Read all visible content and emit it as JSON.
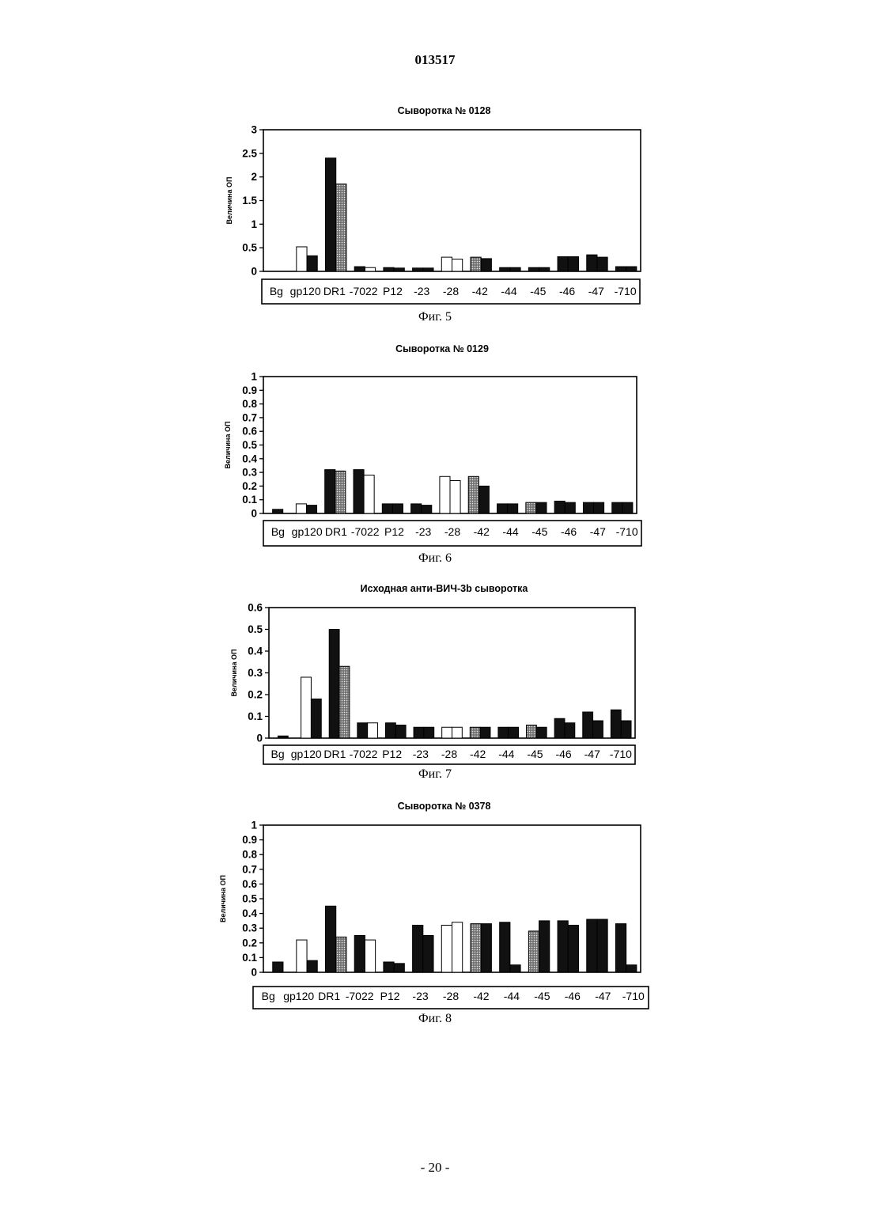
{
  "document": {
    "page_number": "013517",
    "footer": "- 20 -"
  },
  "chart_data": [
    {
      "type": "bar",
      "title": "Сыворотка № 0128",
      "ylabel": "Величина ОП",
      "caption": "Фиг. 5",
      "ylim": [
        0,
        3
      ],
      "yticks": [
        "0",
        "0.5",
        "1",
        "1.5",
        "2",
        "2.5",
        "3"
      ],
      "categories": [
        "Bg",
        "gp120",
        "DR1",
        "-7022",
        "P12",
        "-23",
        "-28",
        "-42",
        "-44",
        "-45",
        "-46",
        "-47",
        "-710"
      ],
      "groups": [
        {
          "category": "Bg",
          "bars": []
        },
        {
          "category": "gp120",
          "bars": [
            {
              "value": 0.52,
              "fill": "white"
            },
            {
              "value": 0.33,
              "fill": "black"
            }
          ]
        },
        {
          "category": "DR1",
          "bars": [
            {
              "value": 2.4,
              "fill": "black"
            },
            {
              "value": 1.85,
              "fill": "gray"
            }
          ]
        },
        {
          "category": "-7022",
          "bars": [
            {
              "value": 0.1,
              "fill": "black"
            },
            {
              "value": 0.08,
              "fill": "white"
            }
          ]
        },
        {
          "category": "P12",
          "bars": [
            {
              "value": 0.08,
              "fill": "black"
            },
            {
              "value": 0.07,
              "fill": "black"
            }
          ]
        },
        {
          "category": "-23",
          "bars": [
            {
              "value": 0.07,
              "fill": "black"
            },
            {
              "value": 0.07,
              "fill": "black"
            }
          ]
        },
        {
          "category": "-28",
          "bars": [
            {
              "value": 0.3,
              "fill": "white"
            },
            {
              "value": 0.26,
              "fill": "white"
            }
          ]
        },
        {
          "category": "-42",
          "bars": [
            {
              "value": 0.3,
              "fill": "gray"
            },
            {
              "value": 0.27,
              "fill": "black"
            }
          ]
        },
        {
          "category": "-44",
          "bars": [
            {
              "value": 0.08,
              "fill": "black"
            },
            {
              "value": 0.08,
              "fill": "black"
            }
          ]
        },
        {
          "category": "-45",
          "bars": [
            {
              "value": 0.08,
              "fill": "black"
            },
            {
              "value": 0.08,
              "fill": "black"
            }
          ]
        },
        {
          "category": "-46",
          "bars": [
            {
              "value": 0.31,
              "fill": "black"
            },
            {
              "value": 0.31,
              "fill": "black"
            }
          ]
        },
        {
          "category": "-47",
          "bars": [
            {
              "value": 0.35,
              "fill": "black"
            },
            {
              "value": 0.3,
              "fill": "black"
            }
          ]
        },
        {
          "category": "-710",
          "bars": [
            {
              "value": 0.1,
              "fill": "black"
            },
            {
              "value": 0.1,
              "fill": "black"
            }
          ]
        }
      ]
    },
    {
      "type": "bar",
      "title": "Сыворотка № 0129",
      "ylabel": "Величина ОП",
      "caption": "Фиг. 6",
      "ylim": [
        0,
        1
      ],
      "yticks": [
        "0",
        "0.1",
        "0.2",
        "0.3",
        "0.4",
        "0.5",
        "0.6",
        "0.7",
        "0.8",
        "0.9",
        "1"
      ],
      "categories": [
        "Bg",
        "gp120",
        "DR1",
        "-7022",
        "P12",
        "-23",
        "-28",
        "-42",
        "-44",
        "-45",
        "-46",
        "-47",
        "-710"
      ],
      "groups": [
        {
          "category": "Bg",
          "bars": [
            {
              "value": 0.03,
              "fill": "black"
            }
          ]
        },
        {
          "category": "gp120",
          "bars": [
            {
              "value": 0.07,
              "fill": "white"
            },
            {
              "value": 0.06,
              "fill": "black"
            }
          ]
        },
        {
          "category": "DR1",
          "bars": [
            {
              "value": 0.32,
              "fill": "black"
            },
            {
              "value": 0.31,
              "fill": "gray"
            }
          ]
        },
        {
          "category": "-7022",
          "bars": [
            {
              "value": 0.32,
              "fill": "black"
            },
            {
              "value": 0.28,
              "fill": "white"
            }
          ]
        },
        {
          "category": "P12",
          "bars": [
            {
              "value": 0.07,
              "fill": "black"
            },
            {
              "value": 0.07,
              "fill": "black"
            }
          ]
        },
        {
          "category": "-23",
          "bars": [
            {
              "value": 0.07,
              "fill": "black"
            },
            {
              "value": 0.06,
              "fill": "black"
            }
          ]
        },
        {
          "category": "-28",
          "bars": [
            {
              "value": 0.27,
              "fill": "white"
            },
            {
              "value": 0.24,
              "fill": "white"
            }
          ]
        },
        {
          "category": "-42",
          "bars": [
            {
              "value": 0.27,
              "fill": "gray"
            },
            {
              "value": 0.2,
              "fill": "black"
            }
          ]
        },
        {
          "category": "-44",
          "bars": [
            {
              "value": 0.07,
              "fill": "black"
            },
            {
              "value": 0.07,
              "fill": "black"
            }
          ]
        },
        {
          "category": "-45",
          "bars": [
            {
              "value": 0.08,
              "fill": "gray"
            },
            {
              "value": 0.08,
              "fill": "black"
            }
          ]
        },
        {
          "category": "-46",
          "bars": [
            {
              "value": 0.09,
              "fill": "black"
            },
            {
              "value": 0.08,
              "fill": "black"
            }
          ]
        },
        {
          "category": "-47",
          "bars": [
            {
              "value": 0.08,
              "fill": "black"
            },
            {
              "value": 0.08,
              "fill": "black"
            }
          ]
        },
        {
          "category": "-710",
          "bars": [
            {
              "value": 0.08,
              "fill": "black"
            },
            {
              "value": 0.08,
              "fill": "black"
            }
          ]
        }
      ]
    },
    {
      "type": "bar",
      "title": "Исходная анти-ВИЧ-3b сыворотка",
      "ylabel": "Величина ОП",
      "caption": "Фиг. 7",
      "ylim": [
        0,
        0.6
      ],
      "yticks": [
        "0",
        "0.1",
        "0.2",
        "0.3",
        "0.4",
        "0.5",
        "0.6"
      ],
      "categories": [
        "Bg",
        "gp120",
        "DR1",
        "-7022",
        "P12",
        "-23",
        "-28",
        "-42",
        "-44",
        "-45",
        "-46",
        "-47",
        "-710"
      ],
      "groups": [
        {
          "category": "Bg",
          "bars": [
            {
              "value": 0.01,
              "fill": "black"
            }
          ]
        },
        {
          "category": "gp120",
          "bars": [
            {
              "value": 0.28,
              "fill": "white"
            },
            {
              "value": 0.18,
              "fill": "black"
            }
          ]
        },
        {
          "category": "DR1",
          "bars": [
            {
              "value": 0.5,
              "fill": "black"
            },
            {
              "value": 0.33,
              "fill": "gray"
            }
          ]
        },
        {
          "category": "-7022",
          "bars": [
            {
              "value": 0.07,
              "fill": "black"
            },
            {
              "value": 0.07,
              "fill": "white"
            }
          ]
        },
        {
          "category": "P12",
          "bars": [
            {
              "value": 0.07,
              "fill": "black"
            },
            {
              "value": 0.06,
              "fill": "black"
            }
          ]
        },
        {
          "category": "-23",
          "bars": [
            {
              "value": 0.05,
              "fill": "black"
            },
            {
              "value": 0.05,
              "fill": "black"
            }
          ]
        },
        {
          "category": "-28",
          "bars": [
            {
              "value": 0.05,
              "fill": "white"
            },
            {
              "value": 0.05,
              "fill": "white"
            }
          ]
        },
        {
          "category": "-42",
          "bars": [
            {
              "value": 0.05,
              "fill": "gray"
            },
            {
              "value": 0.05,
              "fill": "black"
            }
          ]
        },
        {
          "category": "-44",
          "bars": [
            {
              "value": 0.05,
              "fill": "black"
            },
            {
              "value": 0.05,
              "fill": "black"
            }
          ]
        },
        {
          "category": "-45",
          "bars": [
            {
              "value": 0.06,
              "fill": "gray"
            },
            {
              "value": 0.05,
              "fill": "black"
            }
          ]
        },
        {
          "category": "-46",
          "bars": [
            {
              "value": 0.09,
              "fill": "black"
            },
            {
              "value": 0.07,
              "fill": "black"
            }
          ]
        },
        {
          "category": "-47",
          "bars": [
            {
              "value": 0.12,
              "fill": "black"
            },
            {
              "value": 0.08,
              "fill": "black"
            }
          ]
        },
        {
          "category": "-710",
          "bars": [
            {
              "value": 0.13,
              "fill": "black"
            },
            {
              "value": 0.08,
              "fill": "black"
            }
          ]
        }
      ]
    },
    {
      "type": "bar",
      "title": "Сыворотка № 0378",
      "ylabel": "Величина ОП",
      "caption": "Фиг. 8",
      "ylim": [
        0,
        1
      ],
      "yticks": [
        "0",
        "0.1",
        "0.2",
        "0.3",
        "0.4",
        "0.5",
        "0.6",
        "0.7",
        "0.8",
        "0.9",
        "1"
      ],
      "categories": [
        "Bg",
        "gp120",
        "DR1",
        "-7022",
        "P12",
        "-23",
        "-28",
        "-42",
        "-44",
        "-45",
        "-46",
        "-47",
        "-710"
      ],
      "groups": [
        {
          "category": "Bg",
          "bars": [
            {
              "value": 0.07,
              "fill": "black"
            }
          ]
        },
        {
          "category": "gp120",
          "bars": [
            {
              "value": 0.22,
              "fill": "white"
            },
            {
              "value": 0.08,
              "fill": "black"
            }
          ]
        },
        {
          "category": "DR1",
          "bars": [
            {
              "value": 0.45,
              "fill": "black"
            },
            {
              "value": 0.24,
              "fill": "gray"
            }
          ]
        },
        {
          "category": "-7022",
          "bars": [
            {
              "value": 0.25,
              "fill": "black"
            },
            {
              "value": 0.22,
              "fill": "white"
            }
          ]
        },
        {
          "category": "P12",
          "bars": [
            {
              "value": 0.07,
              "fill": "black"
            },
            {
              "value": 0.06,
              "fill": "black"
            }
          ]
        },
        {
          "category": "-23",
          "bars": [
            {
              "value": 0.32,
              "fill": "black"
            },
            {
              "value": 0.25,
              "fill": "black"
            }
          ]
        },
        {
          "category": "-28",
          "bars": [
            {
              "value": 0.32,
              "fill": "white"
            },
            {
              "value": 0.34,
              "fill": "white"
            }
          ]
        },
        {
          "category": "-42",
          "bars": [
            {
              "value": 0.33,
              "fill": "gray"
            },
            {
              "value": 0.33,
              "fill": "black"
            }
          ]
        },
        {
          "category": "-44",
          "bars": [
            {
              "value": 0.34,
              "fill": "black"
            },
            {
              "value": 0.05,
              "fill": "black"
            }
          ]
        },
        {
          "category": "-45",
          "bars": [
            {
              "value": 0.28,
              "fill": "gray"
            },
            {
              "value": 0.35,
              "fill": "black"
            }
          ]
        },
        {
          "category": "-46",
          "bars": [
            {
              "value": 0.35,
              "fill": "black"
            },
            {
              "value": 0.32,
              "fill": "black"
            }
          ]
        },
        {
          "category": "-47",
          "bars": [
            {
              "value": 0.36,
              "fill": "black"
            },
            {
              "value": 0.36,
              "fill": "black"
            }
          ]
        },
        {
          "category": "-710",
          "bars": [
            {
              "value": 0.33,
              "fill": "black"
            },
            {
              "value": 0.05,
              "fill": "black"
            }
          ]
        }
      ]
    }
  ]
}
